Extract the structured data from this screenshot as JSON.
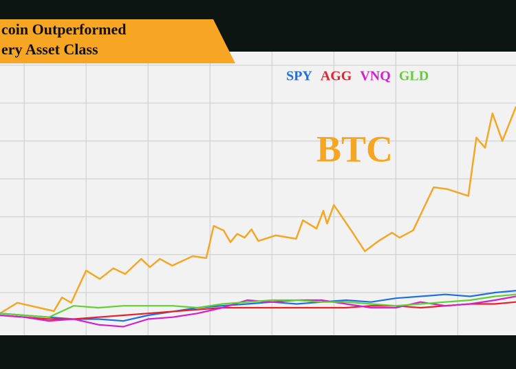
{
  "chart_data": {
    "type": "line",
    "title_lines": [
      "coin Outperformed",
      "ery Asset Class"
    ],
    "xlim": [
      -0.39,
      7.94
    ],
    "xticks": [
      0,
      1,
      2,
      3,
      4,
      5,
      6,
      7
    ],
    "ylim": [
      0,
      7.45
    ],
    "yticks": [
      1,
      2,
      3,
      4,
      5,
      6,
      7
    ],
    "grid": true,
    "series": [
      {
        "name": "SPY",
        "color": "#1f6fe0",
        "x": [
          -0.39,
          0,
          0.4,
          0.8,
          1.2,
          1.6,
          2,
          2.4,
          2.8,
          3.2,
          3.6,
          4,
          4.4,
          4.8,
          5.2,
          5.6,
          6,
          6.4,
          6.8,
          7.2,
          7.6,
          7.94
        ],
        "values": [
          0.45,
          0.4,
          0.35,
          0.3,
          0.3,
          0.25,
          0.4,
          0.5,
          0.6,
          0.65,
          0.7,
          0.75,
          0.7,
          0.75,
          0.8,
          0.75,
          0.85,
          0.9,
          0.95,
          0.9,
          1.0,
          1.05
        ]
      },
      {
        "name": "AGG",
        "color": "#e8202a",
        "x": [
          -0.39,
          0,
          0.4,
          0.8,
          1.2,
          1.6,
          2,
          2.4,
          2.8,
          3.2,
          3.6,
          4,
          4.4,
          4.8,
          5.2,
          5.6,
          6,
          6.4,
          6.8,
          7.2,
          7.6,
          7.94
        ],
        "values": [
          0.4,
          0.35,
          0.3,
          0.3,
          0.35,
          0.4,
          0.45,
          0.5,
          0.55,
          0.6,
          0.6,
          0.6,
          0.6,
          0.6,
          0.6,
          0.65,
          0.65,
          0.6,
          0.65,
          0.7,
          0.7,
          0.75
        ]
      },
      {
        "name": "VNQ",
        "color": "#d21fd0",
        "x": [
          -0.39,
          0,
          0.4,
          0.8,
          1.2,
          1.6,
          2,
          2.4,
          2.8,
          3.2,
          3.6,
          4,
          4.4,
          4.8,
          5.2,
          5.6,
          6,
          6.4,
          6.8,
          7.2,
          7.6,
          7.94
        ],
        "values": [
          0.4,
          0.35,
          0.25,
          0.3,
          0.15,
          0.1,
          0.3,
          0.35,
          0.45,
          0.6,
          0.8,
          0.75,
          0.8,
          0.8,
          0.7,
          0.6,
          0.6,
          0.75,
          0.65,
          0.7,
          0.8,
          0.9
        ]
      },
      {
        "name": "GLD",
        "color": "#5fd130",
        "x": [
          -0.39,
          0,
          0.4,
          0.8,
          1.2,
          1.6,
          2,
          2.4,
          2.8,
          3.2,
          3.6,
          4,
          4.4,
          4.8,
          5.2,
          5.6,
          6,
          6.4,
          6.8,
          7.2,
          7.6,
          7.94
        ],
        "values": [
          0.45,
          0.4,
          0.35,
          0.65,
          0.6,
          0.65,
          0.65,
          0.65,
          0.6,
          0.7,
          0.75,
          0.8,
          0.8,
          0.75,
          0.75,
          0.7,
          0.65,
          0.7,
          0.75,
          0.8,
          0.9,
          0.95
        ]
      },
      {
        "name": "BTC",
        "color": "#f5a623",
        "x": [
          -0.39,
          -0.11,
          0.48,
          0.61,
          0.76,
          1.0,
          1.22,
          1.44,
          1.63,
          1.89,
          2.03,
          2.19,
          2.39,
          2.72,
          2.94,
          3.06,
          3.22,
          3.33,
          3.44,
          3.56,
          3.67,
          3.78,
          4.06,
          4.39,
          4.5,
          4.72,
          4.83,
          4.89,
          5.0,
          5.28,
          5.5,
          5.72,
          5.94,
          6.06,
          6.28,
          6.61,
          6.83,
          7.17,
          7.3,
          7.44,
          7.56,
          7.72,
          7.94
        ],
        "values": [
          0.45,
          0.73,
          0.51,
          0.87,
          0.73,
          1.58,
          1.36,
          1.64,
          1.49,
          1.89,
          1.67,
          1.89,
          1.71,
          1.96,
          1.91,
          2.76,
          2.64,
          2.33,
          2.55,
          2.45,
          2.67,
          2.36,
          2.51,
          2.42,
          2.91,
          2.69,
          3.16,
          2.82,
          3.31,
          2.64,
          2.09,
          2.36,
          2.58,
          2.45,
          2.64,
          3.78,
          3.73,
          3.55,
          5.09,
          4.82,
          5.73,
          5.0,
          5.91
        ]
      }
    ]
  }
}
